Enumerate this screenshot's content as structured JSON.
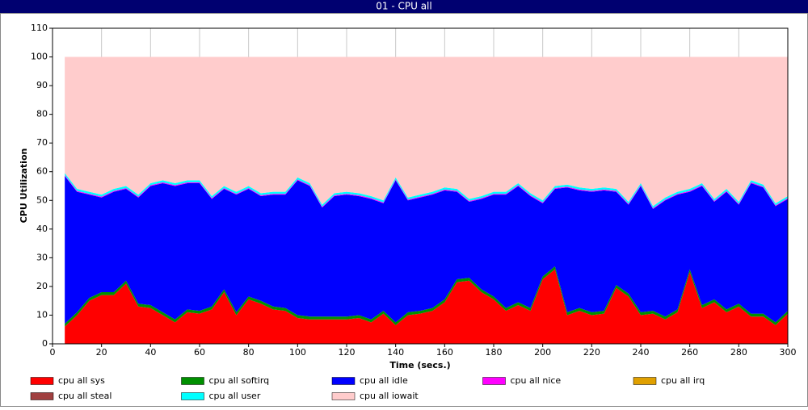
{
  "window_title": "01 - CPU all",
  "chart_data": {
    "type": "stacked_area",
    "xlabel": "Time (secs.)",
    "ylabel": "CPU Utilization",
    "xlim": [
      0,
      300
    ],
    "ylim": [
      0,
      110
    ],
    "xticks": [
      0,
      20,
      40,
      60,
      80,
      100,
      120,
      140,
      160,
      180,
      200,
      220,
      240,
      260,
      280,
      300
    ],
    "yticks": [
      0,
      10,
      20,
      30,
      40,
      50,
      60,
      70,
      80,
      90,
      100,
      110
    ],
    "grid": "x",
    "x": [
      5,
      10,
      15,
      20,
      25,
      30,
      35,
      40,
      45,
      50,
      55,
      60,
      65,
      70,
      75,
      80,
      85,
      90,
      95,
      100,
      105,
      110,
      115,
      120,
      125,
      130,
      135,
      140,
      145,
      150,
      155,
      160,
      165,
      170,
      175,
      180,
      185,
      190,
      195,
      200,
      205,
      210,
      215,
      220,
      225,
      230,
      235,
      240,
      245,
      250,
      255,
      260,
      265,
      270,
      275,
      280,
      285,
      290,
      295,
      300
    ],
    "series": [
      {
        "name": "cpu all sys",
        "color": "#ff0000",
        "values": [
          6,
          10,
          15,
          17,
          17,
          21,
          13,
          12.5,
          10,
          7.5,
          11,
          10.5,
          12,
          18,
          10,
          15.5,
          14,
          12,
          11.5,
          9,
          8.5,
          8.5,
          8.5,
          8.5,
          9,
          7.5,
          10.5,
          6.5,
          10,
          10.5,
          11.5,
          14.5,
          21.5,
          22,
          18,
          15.5,
          11.5,
          13.5,
          11.5,
          22.5,
          26,
          10,
          11.5,
          10,
          10.5,
          19.5,
          16.5,
          10,
          10.5,
          8.5,
          11,
          25,
          12.5,
          14.5,
          11,
          13,
          9.5,
          9.5,
          6.5,
          10.5
        ]
      },
      {
        "name": "cpu all softirq",
        "color": "#009000",
        "values": [
          1,
          1,
          1,
          1,
          1,
          1,
          1,
          1,
          1,
          1,
          1,
          1,
          1,
          1,
          1,
          1,
          1,
          1,
          1,
          1,
          1,
          1,
          1,
          1,
          1,
          1,
          1,
          1,
          1,
          1,
          1,
          1,
          1,
          1,
          1,
          1,
          1,
          1,
          1,
          1,
          1,
          1,
          1,
          1,
          1,
          1,
          1,
          1,
          1,
          1,
          1,
          1,
          1,
          1,
          1,
          1,
          1,
          1,
          1,
          1
        ]
      },
      {
        "name": "cpu all idle",
        "color": "#0000ff",
        "values": [
          51.5,
          42,
          36,
          33,
          35,
          32,
          37,
          41.5,
          45,
          46.5,
          44,
          44.5,
          37.5,
          35,
          41,
          37.5,
          36.5,
          39,
          39.5,
          47,
          45.5,
          38,
          42,
          42.5,
          41.5,
          42,
          37.5,
          49.5,
          39,
          39.5,
          39.5,
          38,
          30.5,
          26.5,
          31.5,
          35.5,
          39.5,
          40.5,
          39,
          25.5,
          27,
          43.5,
          41,
          42,
          42,
          32.5,
          31,
          44,
          35.5,
          40.5,
          40,
          27,
          41.5,
          34,
          41,
          34.5,
          45.5,
          44,
          40.5,
          39
        ]
      },
      {
        "name": "cpu all nice",
        "color": "#ff00ff",
        "values": [
          0.3,
          0.3,
          0.3,
          0.3,
          0.3,
          0.3,
          0.3,
          0.3,
          0.3,
          0.3,
          0.3,
          0.3,
          0.3,
          0.3,
          0.3,
          0.3,
          0.3,
          0.3,
          0.3,
          0.3,
          0.3,
          0.3,
          0.3,
          0.3,
          0.3,
          0.3,
          0.3,
          0.3,
          0.3,
          0.3,
          0.3,
          0.3,
          0.3,
          0.3,
          0.3,
          0.3,
          0.3,
          0.3,
          0.3,
          0.3,
          0.3,
          0.3,
          0.3,
          0.3,
          0.3,
          0.3,
          0.3,
          0.3,
          0.3,
          0.3,
          0.3,
          0.3,
          0.3,
          0.3,
          0.3,
          0.3,
          0.3,
          0.3,
          0.3,
          0.3
        ]
      },
      {
        "name": "cpu all irq",
        "color": "#e0a000",
        "values": [
          0,
          0,
          0,
          0,
          0,
          0,
          0,
          0,
          0,
          0,
          0,
          0,
          0,
          0,
          0,
          0,
          0,
          0,
          0,
          0,
          0,
          0,
          0,
          0,
          0,
          0,
          0,
          0,
          0,
          0,
          0,
          0,
          0,
          0,
          0,
          0,
          0,
          0,
          0,
          0,
          0,
          0,
          0,
          0,
          0,
          0,
          0,
          0,
          0,
          0,
          0,
          0,
          0,
          0,
          0,
          0,
          0,
          0,
          0,
          0
        ]
      },
      {
        "name": "cpu all steal",
        "color": "#a04040",
        "values": [
          0,
          0,
          0,
          0,
          0,
          0,
          0,
          0,
          0,
          0,
          0,
          0,
          0,
          0,
          0,
          0,
          0,
          0,
          0,
          0,
          0,
          0,
          0,
          0,
          0,
          0,
          0,
          0,
          0,
          0,
          0,
          0,
          0,
          0,
          0,
          0,
          0,
          0,
          0,
          0,
          0,
          0,
          0,
          0,
          0,
          0,
          0,
          0,
          0,
          0,
          0,
          0,
          0,
          0,
          0,
          0,
          0,
          0,
          0,
          0
        ]
      },
      {
        "name": "cpu all user",
        "color": "#00ffff",
        "values": [
          0.7,
          0.7,
          0.7,
          0.7,
          0.7,
          0.7,
          0.7,
          0.7,
          0.7,
          0.7,
          0.7,
          0.7,
          0.7,
          0.7,
          0.7,
          0.7,
          0.7,
          0.7,
          0.7,
          0.7,
          0.7,
          0.7,
          0.7,
          0.7,
          0.7,
          0.7,
          0.7,
          0.7,
          0.7,
          0.7,
          0.7,
          0.7,
          0.7,
          0.7,
          0.7,
          0.7,
          0.7,
          0.7,
          0.7,
          0.7,
          0.7,
          0.7,
          0.7,
          0.7,
          0.7,
          0.7,
          0.7,
          0.7,
          0.7,
          0.7,
          0.7,
          0.7,
          0.7,
          0.7,
          0.7,
          0.7,
          0.7,
          0.7,
          0.7,
          0.7
        ]
      },
      {
        "name": "cpu all iowait",
        "color": "#ffcccc",
        "values": [
          40.5,
          46,
          47,
          48,
          46,
          45,
          48,
          44,
          43,
          44,
          43,
          43,
          48.5,
          45,
          47,
          45,
          47.5,
          47,
          47,
          42,
          44,
          51.5,
          47.5,
          47,
          47.5,
          48.5,
          50,
          42,
          49,
          48,
          47,
          45.5,
          46,
          49.5,
          48.5,
          47,
          47,
          44,
          47.5,
          50,
          45,
          44.5,
          45.5,
          46,
          45.5,
          46,
          50.5,
          44,
          52,
          49,
          47,
          46,
          44,
          49.5,
          46,
          50.5,
          43,
          44.5,
          51,
          48.5
        ]
      }
    ]
  }
}
